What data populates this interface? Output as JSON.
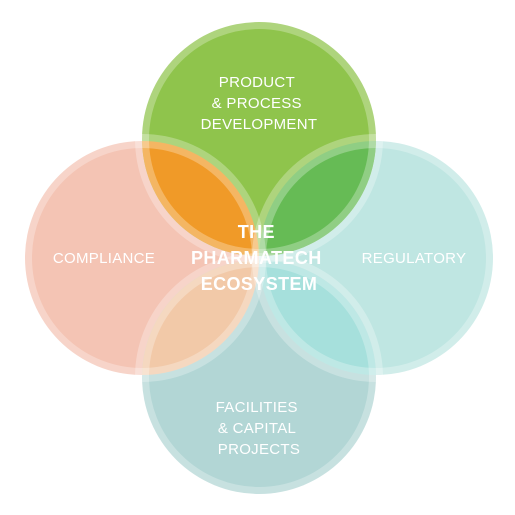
{
  "diagram": {
    "center": {
      "lines": [
        "THE",
        "PHARMATECH",
        "ECOSYSTEM"
      ]
    },
    "circles": [
      {
        "id": "product",
        "lines": [
          "PRODUCT",
          "& PROCESS",
          "DEVELOPMENT"
        ],
        "color": "#8fc44c"
      },
      {
        "id": "compliance",
        "lines": [
          "COMPLIANCE"
        ],
        "color": "#f4c4b4"
      },
      {
        "id": "regulatory",
        "lines": [
          "REGULATORY"
        ],
        "color": "#bfe6e2"
      },
      {
        "id": "facilities",
        "lines": [
          "FACILITIES",
          "& CAPITAL",
          "PROJECTS"
        ],
        "color": "#b2d6d5"
      }
    ],
    "overlaps": {
      "product_compliance": "#f09a28",
      "product_regulatory": "#66bb55",
      "compliance_facilities": "#f2c9a8",
      "regulatory_facilities": "#a6e0dc"
    },
    "ring_color": "#ffffff"
  }
}
